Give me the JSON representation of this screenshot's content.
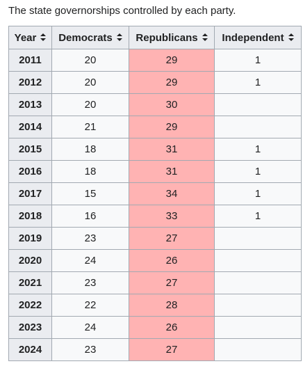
{
  "caption": "The state governorships controlled by each party.",
  "table": {
    "headers": [
      "Year",
      "Democrats",
      "Republicans",
      "Independent"
    ],
    "rows": [
      {
        "year": "2011",
        "democrats": "20",
        "republicans": "29",
        "independent": "1"
      },
      {
        "year": "2012",
        "democrats": "20",
        "republicans": "29",
        "independent": "1"
      },
      {
        "year": "2013",
        "democrats": "20",
        "republicans": "30",
        "independent": ""
      },
      {
        "year": "2014",
        "democrats": "21",
        "republicans": "29",
        "independent": ""
      },
      {
        "year": "2015",
        "democrats": "18",
        "republicans": "31",
        "independent": "1"
      },
      {
        "year": "2016",
        "democrats": "18",
        "republicans": "31",
        "independent": "1"
      },
      {
        "year": "2017",
        "democrats": "15",
        "republicans": "34",
        "independent": "1"
      },
      {
        "year": "2018",
        "democrats": "16",
        "republicans": "33",
        "independent": "1"
      },
      {
        "year": "2019",
        "democrats": "23",
        "republicans": "27",
        "independent": ""
      },
      {
        "year": "2020",
        "democrats": "24",
        "republicans": "26",
        "independent": ""
      },
      {
        "year": "2021",
        "democrats": "23",
        "republicans": "27",
        "independent": ""
      },
      {
        "year": "2022",
        "democrats": "22",
        "republicans": "28",
        "independent": ""
      },
      {
        "year": "2023",
        "democrats": "24",
        "republicans": "26",
        "independent": ""
      },
      {
        "year": "2024",
        "democrats": "23",
        "republicans": "27",
        "independent": ""
      }
    ]
  },
  "colors": {
    "republican_cell": "#ffb3b3",
    "header_bg": "#eaecf0",
    "cell_bg": "#f8f9fa",
    "border": "#a2a9b1"
  },
  "icons": {
    "sort": "sort-both-arrows-icon"
  }
}
